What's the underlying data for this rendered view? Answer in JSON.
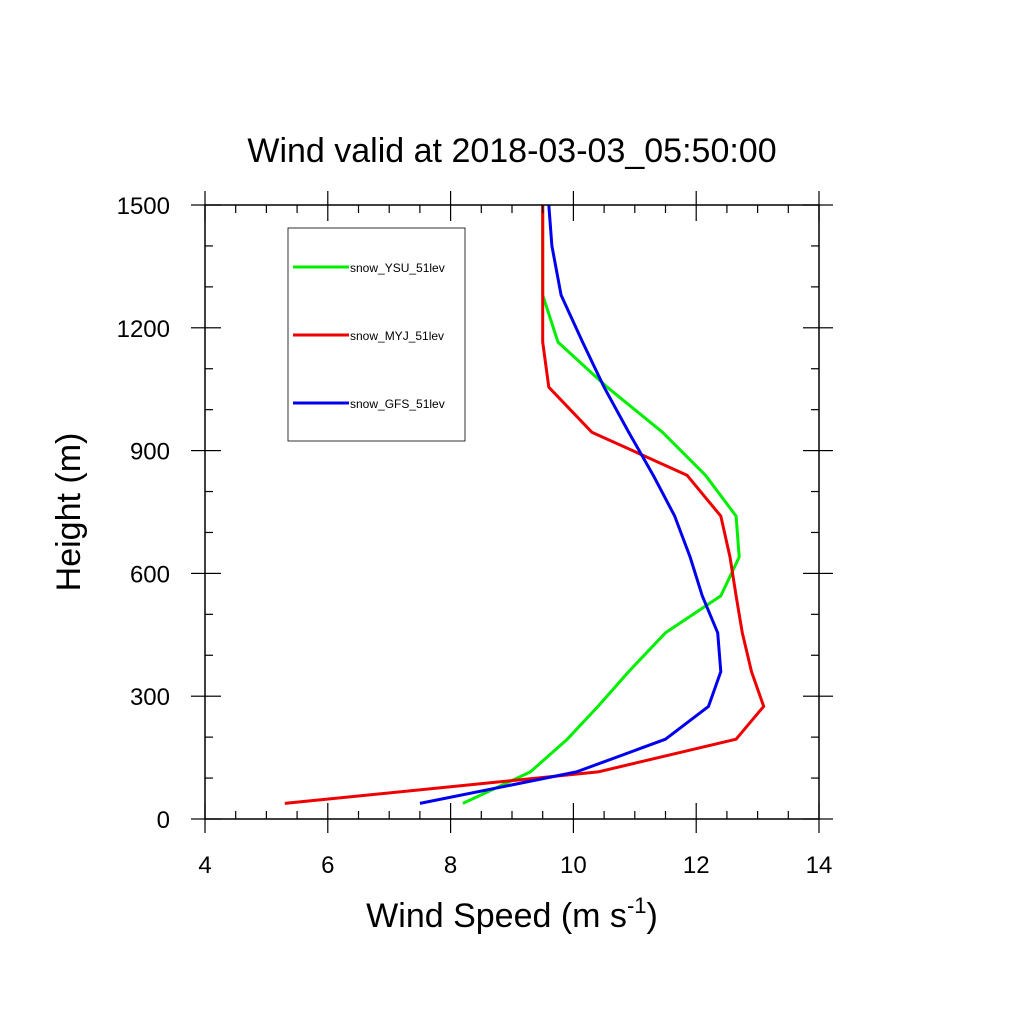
{
  "chart_data": {
    "type": "line",
    "title": "Wind valid at 2018-03-03_05:50:00",
    "xlabel": "Wind Speed (m s",
    "xlabel_superscript": "-1",
    "xlabel_suffix": ")",
    "ylabel": "Height (m)",
    "xlim": [
      4,
      14
    ],
    "ylim": [
      0,
      1500
    ],
    "xticks": [
      4,
      6,
      8,
      10,
      12,
      14
    ],
    "yticks": [
      0,
      300,
      600,
      900,
      1200,
      1500
    ],
    "legend": "top-left",
    "grid": false,
    "series": [
      {
        "name": "snow_YSU_51lev",
        "color": "#00ee00",
        "points": [
          [
            8.2,
            38
          ],
          [
            9.3,
            115
          ],
          [
            9.9,
            195
          ],
          [
            10.4,
            275
          ],
          [
            10.9,
            360
          ],
          [
            11.5,
            455
          ],
          [
            12.4,
            545
          ],
          [
            12.7,
            640
          ],
          [
            12.65,
            740
          ],
          [
            12.15,
            840
          ],
          [
            11.45,
            945
          ],
          [
            10.55,
            1055
          ],
          [
            9.75,
            1165
          ],
          [
            9.5,
            1280
          ],
          [
            9.5,
            1400
          ],
          [
            9.5,
            1500
          ]
        ]
      },
      {
        "name": "snow_MYJ_51lev",
        "color": "#ee0000",
        "points": [
          [
            5.3,
            38
          ],
          [
            10.4,
            115
          ],
          [
            12.65,
            195
          ],
          [
            13.1,
            275
          ],
          [
            12.9,
            360
          ],
          [
            12.75,
            455
          ],
          [
            12.65,
            545
          ],
          [
            12.55,
            640
          ],
          [
            12.4,
            740
          ],
          [
            11.85,
            840
          ],
          [
            10.3,
            945
          ],
          [
            9.6,
            1055
          ],
          [
            9.5,
            1165
          ],
          [
            9.5,
            1280
          ],
          [
            9.5,
            1400
          ],
          [
            9.5,
            1500
          ]
        ]
      },
      {
        "name": "snow_GFS_51lev",
        "color": "#0000ee",
        "points": [
          [
            7.5,
            38
          ],
          [
            10.05,
            115
          ],
          [
            11.5,
            195
          ],
          [
            12.2,
            275
          ],
          [
            12.4,
            360
          ],
          [
            12.35,
            455
          ],
          [
            12.1,
            545
          ],
          [
            11.9,
            640
          ],
          [
            11.65,
            740
          ],
          [
            11.3,
            840
          ],
          [
            10.9,
            945
          ],
          [
            10.5,
            1055
          ],
          [
            10.15,
            1165
          ],
          [
            9.8,
            1280
          ],
          [
            9.65,
            1400
          ],
          [
            9.6,
            1500
          ]
        ]
      }
    ]
  }
}
